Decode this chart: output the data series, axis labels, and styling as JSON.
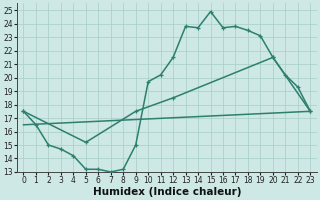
{
  "xlabel": "Humidex (Indice chaleur)",
  "line_color": "#2d7f6e",
  "bg_color": "#cde8e5",
  "grid_color": "#a8cdc8",
  "xlim": [
    -0.5,
    23.5
  ],
  "ylim": [
    13,
    25.5
  ],
  "xticks": [
    0,
    1,
    2,
    3,
    4,
    5,
    6,
    7,
    8,
    9,
    10,
    11,
    12,
    13,
    14,
    15,
    16,
    17,
    18,
    19,
    20,
    21,
    22,
    23
  ],
  "yticks": [
    13,
    14,
    15,
    16,
    17,
    18,
    19,
    20,
    21,
    22,
    23,
    24,
    25
  ],
  "line1_x": [
    0,
    1,
    2,
    3,
    4,
    5,
    6,
    7,
    8,
    9,
    10,
    11,
    12,
    13,
    14,
    15,
    16,
    17,
    18,
    19,
    20,
    21,
    22,
    23
  ],
  "line1_y": [
    17.5,
    16.5,
    15.0,
    14.7,
    14.2,
    13.2,
    13.2,
    13.0,
    13.2,
    15.0,
    19.7,
    20.2,
    21.5,
    23.8,
    23.7,
    24.9,
    23.7,
    23.8,
    23.5,
    23.1,
    21.5,
    20.2,
    19.3,
    17.5
  ],
  "line2_x": [
    0,
    5,
    9,
    12,
    20,
    23
  ],
  "line2_y": [
    17.5,
    15.2,
    17.5,
    18.5,
    21.5,
    17.5
  ],
  "line3_x": [
    0,
    23
  ],
  "line3_y": [
    16.5,
    17.5
  ],
  "marker_size": 3.5,
  "linewidth": 1.1,
  "tick_fontsize": 5.5,
  "label_fontsize": 7.5
}
